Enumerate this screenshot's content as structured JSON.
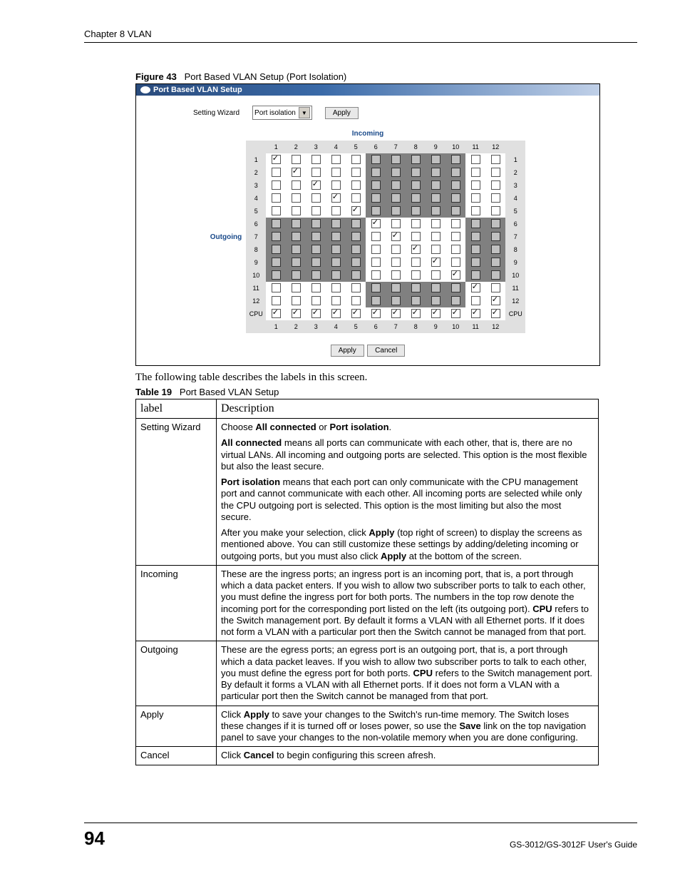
{
  "header": {
    "chapter": "Chapter 8 VLAN"
  },
  "figure": {
    "label": "Figure 43",
    "title": "Port Based VLAN Setup (Port Isolation)"
  },
  "screenshot": {
    "title": "Port Based VLAN Setup",
    "wizard_label": "Setting Wizard",
    "dropdown_value": "Port isolation",
    "apply_label": "Apply",
    "incoming_label": "Incoming",
    "outgoing_label": "Outgoing",
    "cancel_label": "Cancel",
    "columns": [
      "1",
      "2",
      "3",
      "4",
      "5",
      "6",
      "7",
      "8",
      "9",
      "10",
      "11",
      "12"
    ],
    "rows": [
      "1",
      "2",
      "3",
      "4",
      "5",
      "6",
      "7",
      "8",
      "9",
      "10",
      "11",
      "12",
      "CPU"
    ],
    "grid_colors": {
      "gray": "#808080",
      "gray_cb": "#c0c0c0",
      "hdr_bg": "#e0e0e0"
    },
    "cells": [
      [
        {
          "g": 0,
          "c": 1
        },
        {
          "g": 0,
          "c": 0
        },
        {
          "g": 0,
          "c": 0
        },
        {
          "g": 0,
          "c": 0
        },
        {
          "g": 0,
          "c": 0
        },
        {
          "g": 1,
          "c": 0
        },
        {
          "g": 1,
          "c": 0
        },
        {
          "g": 1,
          "c": 0
        },
        {
          "g": 1,
          "c": 0
        },
        {
          "g": 1,
          "c": 0
        },
        {
          "g": 0,
          "c": 0
        },
        {
          "g": 0,
          "c": 0
        }
      ],
      [
        {
          "g": 0,
          "c": 0
        },
        {
          "g": 0,
          "c": 1
        },
        {
          "g": 0,
          "c": 0
        },
        {
          "g": 0,
          "c": 0
        },
        {
          "g": 0,
          "c": 0
        },
        {
          "g": 1,
          "c": 0
        },
        {
          "g": 1,
          "c": 0
        },
        {
          "g": 1,
          "c": 0
        },
        {
          "g": 1,
          "c": 0
        },
        {
          "g": 1,
          "c": 0
        },
        {
          "g": 0,
          "c": 0
        },
        {
          "g": 0,
          "c": 0
        }
      ],
      [
        {
          "g": 0,
          "c": 0
        },
        {
          "g": 0,
          "c": 0
        },
        {
          "g": 0,
          "c": 1
        },
        {
          "g": 0,
          "c": 0
        },
        {
          "g": 0,
          "c": 0
        },
        {
          "g": 1,
          "c": 0
        },
        {
          "g": 1,
          "c": 0
        },
        {
          "g": 1,
          "c": 0
        },
        {
          "g": 1,
          "c": 0
        },
        {
          "g": 1,
          "c": 0
        },
        {
          "g": 0,
          "c": 0
        },
        {
          "g": 0,
          "c": 0
        }
      ],
      [
        {
          "g": 0,
          "c": 0
        },
        {
          "g": 0,
          "c": 0
        },
        {
          "g": 0,
          "c": 0
        },
        {
          "g": 0,
          "c": 1
        },
        {
          "g": 0,
          "c": 0
        },
        {
          "g": 1,
          "c": 0
        },
        {
          "g": 1,
          "c": 0
        },
        {
          "g": 1,
          "c": 0
        },
        {
          "g": 1,
          "c": 0
        },
        {
          "g": 1,
          "c": 0
        },
        {
          "g": 0,
          "c": 0
        },
        {
          "g": 0,
          "c": 0
        }
      ],
      [
        {
          "g": 0,
          "c": 0
        },
        {
          "g": 0,
          "c": 0
        },
        {
          "g": 0,
          "c": 0
        },
        {
          "g": 0,
          "c": 0
        },
        {
          "g": 0,
          "c": 1
        },
        {
          "g": 1,
          "c": 0
        },
        {
          "g": 1,
          "c": 0
        },
        {
          "g": 1,
          "c": 0
        },
        {
          "g": 1,
          "c": 0
        },
        {
          "g": 1,
          "c": 0
        },
        {
          "g": 0,
          "c": 0
        },
        {
          "g": 0,
          "c": 0
        }
      ],
      [
        {
          "g": 1,
          "c": 0
        },
        {
          "g": 1,
          "c": 0
        },
        {
          "g": 1,
          "c": 0
        },
        {
          "g": 1,
          "c": 0
        },
        {
          "g": 1,
          "c": 0
        },
        {
          "g": 0,
          "c": 1
        },
        {
          "g": 0,
          "c": 0
        },
        {
          "g": 0,
          "c": 0
        },
        {
          "g": 0,
          "c": 0
        },
        {
          "g": 0,
          "c": 0
        },
        {
          "g": 1,
          "c": 0
        },
        {
          "g": 1,
          "c": 0
        }
      ],
      [
        {
          "g": 1,
          "c": 0
        },
        {
          "g": 1,
          "c": 0
        },
        {
          "g": 1,
          "c": 0
        },
        {
          "g": 1,
          "c": 0
        },
        {
          "g": 1,
          "c": 0
        },
        {
          "g": 0,
          "c": 0
        },
        {
          "g": 0,
          "c": 1
        },
        {
          "g": 0,
          "c": 0
        },
        {
          "g": 0,
          "c": 0
        },
        {
          "g": 0,
          "c": 0
        },
        {
          "g": 1,
          "c": 0
        },
        {
          "g": 1,
          "c": 0
        }
      ],
      [
        {
          "g": 1,
          "c": 0
        },
        {
          "g": 1,
          "c": 0
        },
        {
          "g": 1,
          "c": 0
        },
        {
          "g": 1,
          "c": 0
        },
        {
          "g": 1,
          "c": 0
        },
        {
          "g": 0,
          "c": 0
        },
        {
          "g": 0,
          "c": 0
        },
        {
          "g": 0,
          "c": 1
        },
        {
          "g": 0,
          "c": 0
        },
        {
          "g": 0,
          "c": 0
        },
        {
          "g": 1,
          "c": 0
        },
        {
          "g": 1,
          "c": 0
        }
      ],
      [
        {
          "g": 1,
          "c": 0
        },
        {
          "g": 1,
          "c": 0
        },
        {
          "g": 1,
          "c": 0
        },
        {
          "g": 1,
          "c": 0
        },
        {
          "g": 1,
          "c": 0
        },
        {
          "g": 0,
          "c": 0
        },
        {
          "g": 0,
          "c": 0
        },
        {
          "g": 0,
          "c": 0
        },
        {
          "g": 0,
          "c": 1
        },
        {
          "g": 0,
          "c": 0
        },
        {
          "g": 1,
          "c": 0
        },
        {
          "g": 1,
          "c": 0
        }
      ],
      [
        {
          "g": 1,
          "c": 0
        },
        {
          "g": 1,
          "c": 0
        },
        {
          "g": 1,
          "c": 0
        },
        {
          "g": 1,
          "c": 0
        },
        {
          "g": 1,
          "c": 0
        },
        {
          "g": 0,
          "c": 0
        },
        {
          "g": 0,
          "c": 0
        },
        {
          "g": 0,
          "c": 0
        },
        {
          "g": 0,
          "c": 0
        },
        {
          "g": 0,
          "c": 1
        },
        {
          "g": 1,
          "c": 0
        },
        {
          "g": 1,
          "c": 0
        }
      ],
      [
        {
          "g": 0,
          "c": 0
        },
        {
          "g": 0,
          "c": 0
        },
        {
          "g": 0,
          "c": 0
        },
        {
          "g": 0,
          "c": 0
        },
        {
          "g": 0,
          "c": 0
        },
        {
          "g": 1,
          "c": 0
        },
        {
          "g": 1,
          "c": 0
        },
        {
          "g": 1,
          "c": 0
        },
        {
          "g": 1,
          "c": 0
        },
        {
          "g": 1,
          "c": 0
        },
        {
          "g": 0,
          "c": 1
        },
        {
          "g": 0,
          "c": 0
        }
      ],
      [
        {
          "g": 0,
          "c": 0
        },
        {
          "g": 0,
          "c": 0
        },
        {
          "g": 0,
          "c": 0
        },
        {
          "g": 0,
          "c": 0
        },
        {
          "g": 0,
          "c": 0
        },
        {
          "g": 1,
          "c": 0
        },
        {
          "g": 1,
          "c": 0
        },
        {
          "g": 1,
          "c": 0
        },
        {
          "g": 1,
          "c": 0
        },
        {
          "g": 1,
          "c": 0
        },
        {
          "g": 0,
          "c": 0
        },
        {
          "g": 0,
          "c": 1
        }
      ],
      [
        {
          "g": 0,
          "c": 1
        },
        {
          "g": 0,
          "c": 1
        },
        {
          "g": 0,
          "c": 1
        },
        {
          "g": 0,
          "c": 1
        },
        {
          "g": 0,
          "c": 1
        },
        {
          "g": 0,
          "c": 1
        },
        {
          "g": 0,
          "c": 1
        },
        {
          "g": 0,
          "c": 1
        },
        {
          "g": 0,
          "c": 1
        },
        {
          "g": 0,
          "c": 1
        },
        {
          "g": 0,
          "c": 1
        },
        {
          "g": 0,
          "c": 1
        }
      ]
    ]
  },
  "intro": "The following table describes the labels in this screen.",
  "table": {
    "label": "Table 19",
    "title": "Port Based VLAN Setup",
    "head_label": "label",
    "head_desc": "Description",
    "rows": [
      {
        "label": "Setting Wizard",
        "paras": [
          "Choose <b>All connected</b> or <b>Port isolation</b>.",
          "<b>All connected</b> means all ports can communicate with each other, that is, there are no virtual LANs. All incoming and outgoing ports are selected. This option is the most flexible but also the least secure.",
          "<b>Port isolation</b> means that each port can only communicate with the CPU management port and cannot communicate with each other. All incoming ports are selected while only the CPU outgoing port is selected. This option is the most limiting but also the most secure.",
          "After you make your selection, click <b>Apply</b> (top right of screen) to display the screens as mentioned above. You can still customize these settings by adding/deleting incoming or outgoing ports, but you must also click <b>Apply</b> at the bottom of the screen."
        ]
      },
      {
        "label": "Incoming",
        "paras": [
          "These are the ingress ports; an ingress port is an incoming port, that is, a port through which a data packet enters. If you wish to allow two subscriber ports to talk to each other, you must define the ingress port for both ports. The numbers in the top row denote the incoming port for the corresponding port listed on the left (its outgoing port). <b>CPU</b> refers to the Switch management port. By default it forms a VLAN with all Ethernet ports. If it does not form a VLAN with a particular port then the Switch cannot be managed from that port."
        ]
      },
      {
        "label": "Outgoing",
        "paras": [
          "These are the egress ports; an egress port is an outgoing port, that is, a port through which a data packet leaves. If you wish to allow two subscriber ports to talk to each other, you must define the egress port for both ports. <b>CPU</b> refers to the Switch management port. By default it forms a VLAN with all Ethernet ports. If it does not form a VLAN with a particular port then the Switch cannot be managed from that port."
        ]
      },
      {
        "label": "Apply",
        "paras": [
          "Click <b>Apply</b> to save your changes to the Switch's run-time memory. The Switch loses these changes if it is turned off or loses power, so use the <b>Save</b> link on the top navigation panel to save your changes to the non-volatile memory when you are done configuring."
        ]
      },
      {
        "label": "Cancel",
        "paras": [
          "Click <b>Cancel</b> to begin configuring this screen afresh."
        ]
      }
    ]
  },
  "footer": {
    "page": "94",
    "guide": "GS-3012/GS-3012F User's Guide"
  }
}
